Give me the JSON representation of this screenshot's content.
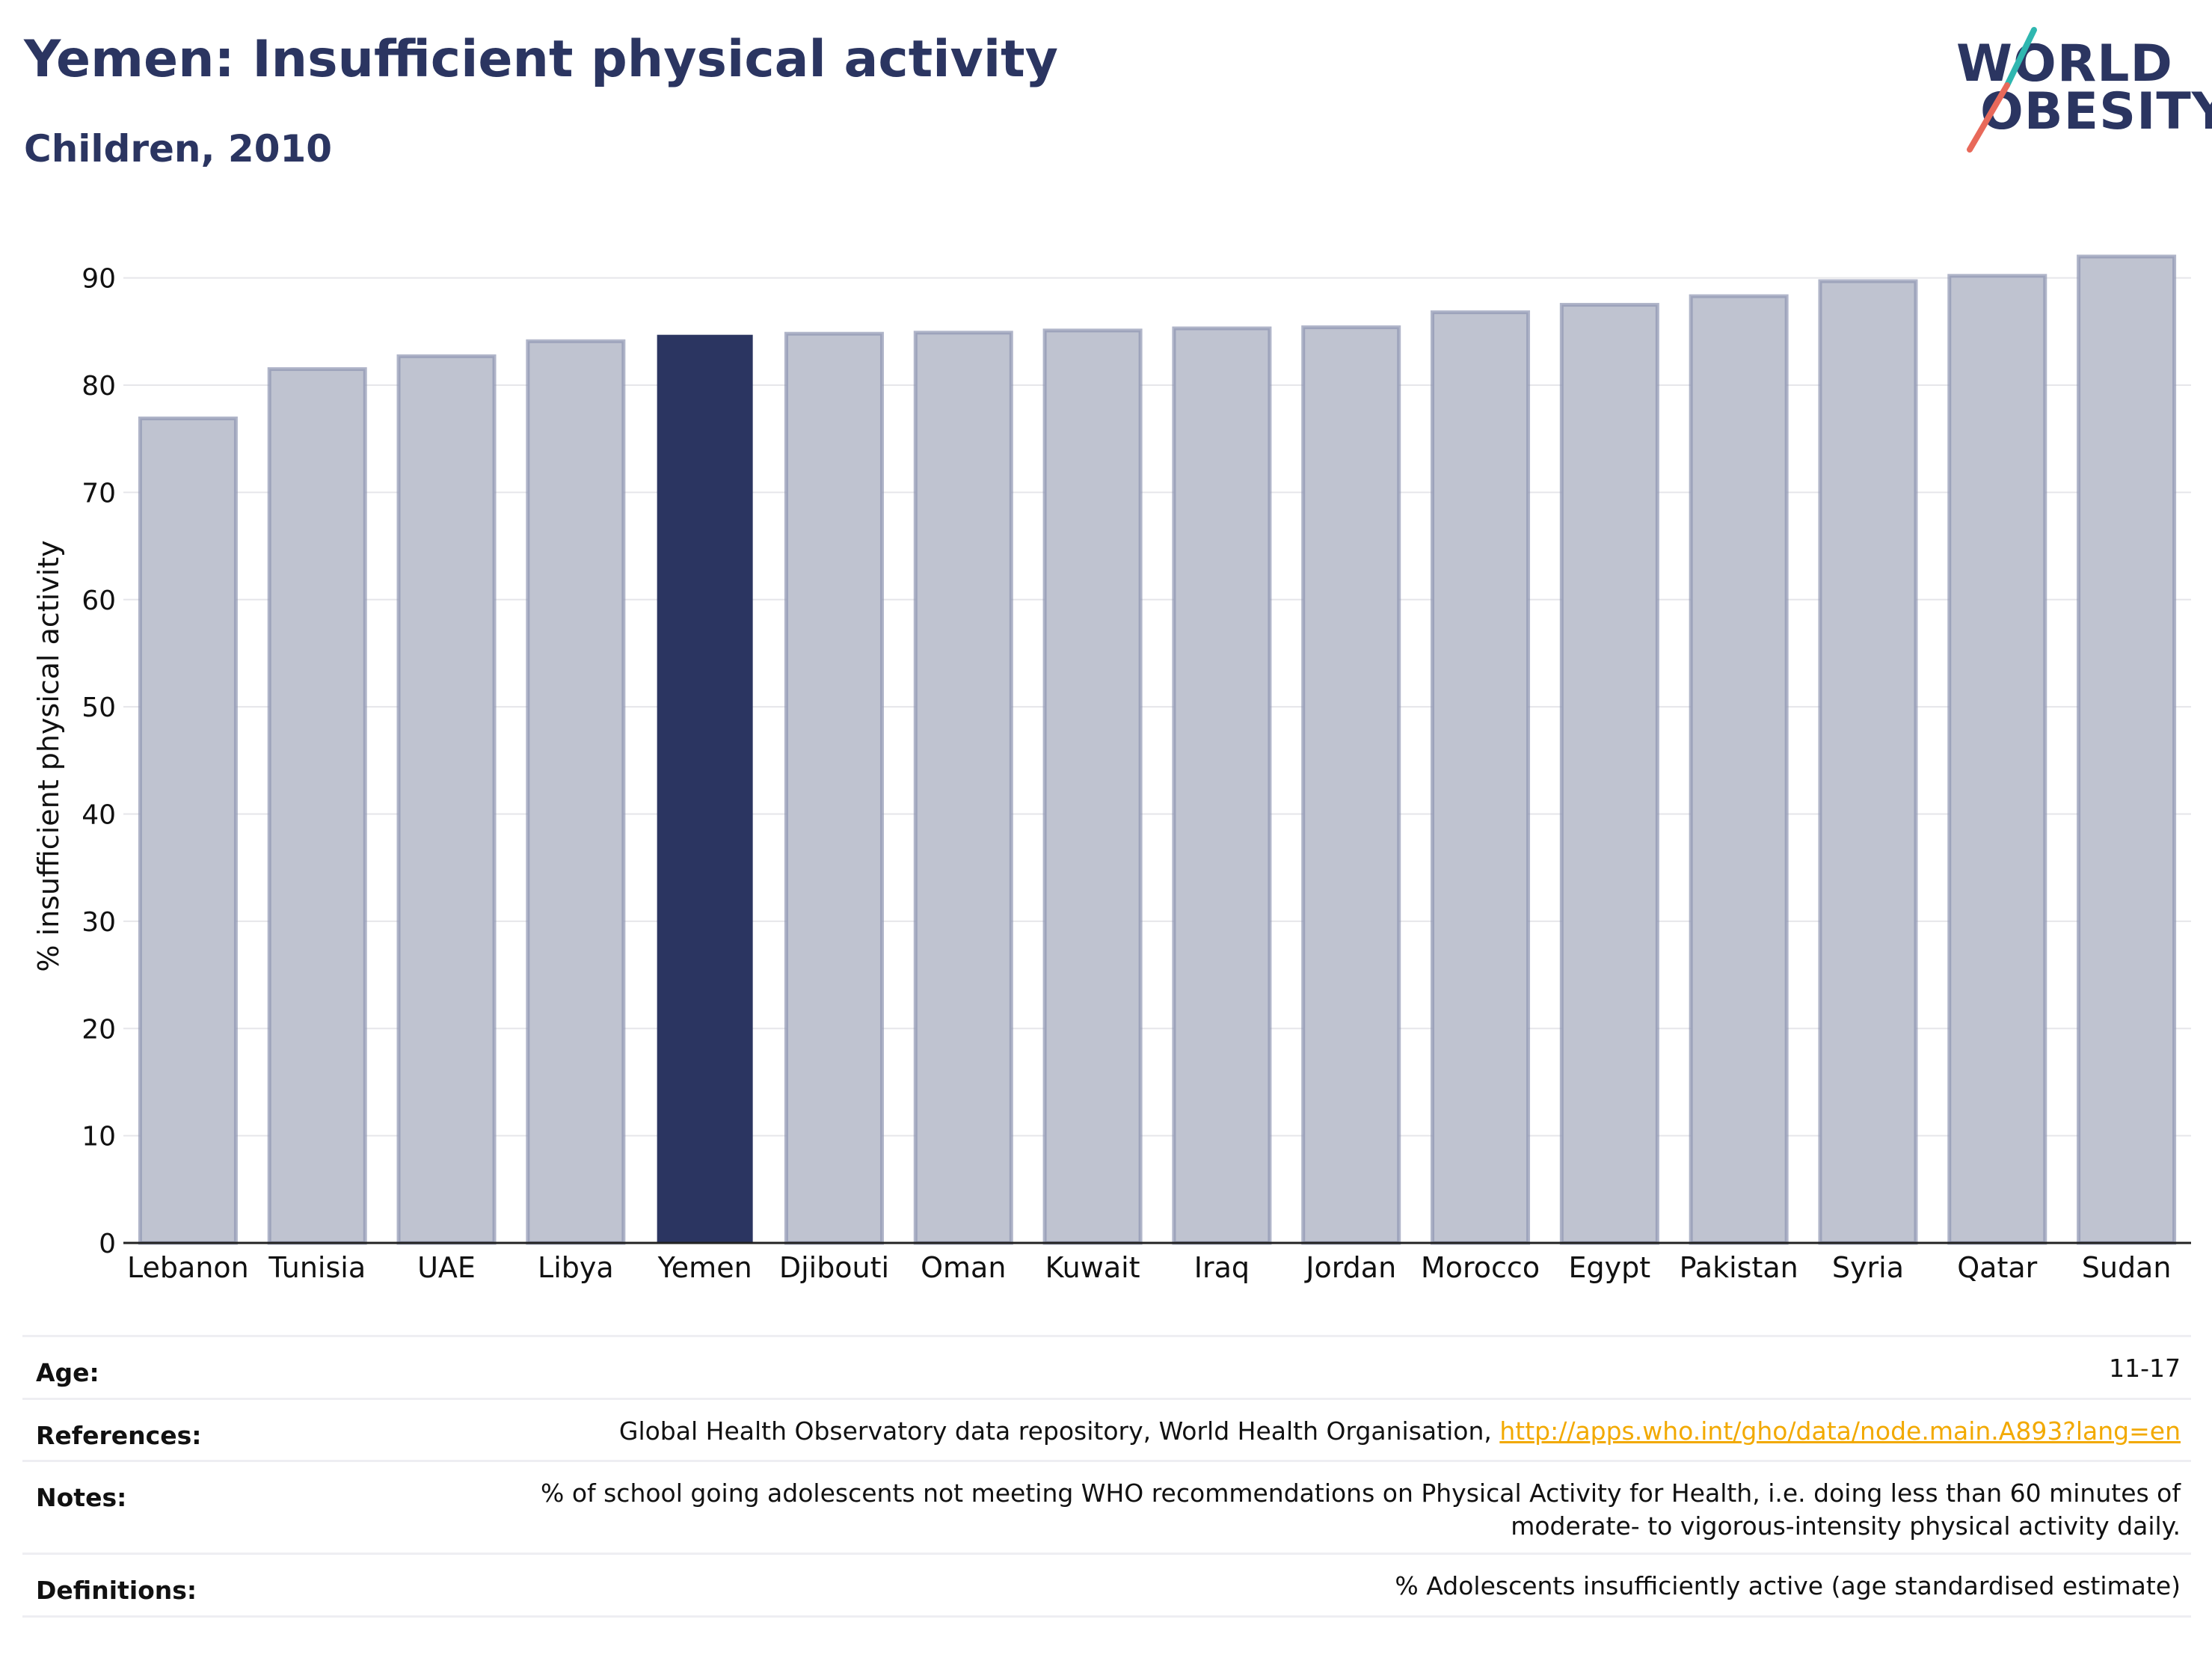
{
  "header": {
    "title": "Yemen: Insufficient physical activity",
    "subtitle": "Children, 2010"
  },
  "logo": {
    "line1": "WORLD",
    "line2": "OBESITY",
    "colors": {
      "text": "#2b3561",
      "slash_top": "#2fb7b0",
      "slash_bottom": "#e8695a"
    }
  },
  "colors": {
    "highlight_bar": "#2b3561",
    "other_bar_fill": "#bfc3d0",
    "other_bar_stroke": "#8f96b2",
    "grid": "#e6e6ea",
    "link": "#f2a900"
  },
  "chart_data": {
    "type": "bar",
    "categories": [
      "Lebanon",
      "Tunisia",
      "UAE",
      "Libya",
      "Yemen",
      "Djibouti",
      "Oman",
      "Kuwait",
      "Iraq",
      "Jordan",
      "Morocco",
      "Egypt",
      "Pakistan",
      "Syria",
      "Qatar",
      "Sudan"
    ],
    "values": [
      76.9,
      81.5,
      82.7,
      84.1,
      84.7,
      84.8,
      84.9,
      85.1,
      85.3,
      85.4,
      86.8,
      87.5,
      88.3,
      89.7,
      90.2,
      92.0
    ],
    "highlight": "Yemen",
    "ylabel": "% insufficient physical activity",
    "xlabel": "",
    "ylim": [
      0,
      95
    ],
    "yticks": [
      0,
      10,
      20,
      30,
      40,
      50,
      60,
      70,
      80,
      90
    ],
    "grid": true
  },
  "info": {
    "age_label": "Age:",
    "age_value": "11-17",
    "references_label": "References:",
    "references_text": "Global Health Observatory data repository, World Health Organisation, ",
    "references_link": "http://apps.who.int/gho/data/node.main.A893?lang=en",
    "notes_label": "Notes:",
    "notes_line1": "% of school going adolescents not meeting WHO recommendations on Physical Activity for Health, i.e. doing less than 60 minutes of",
    "notes_line2": "moderate- to vigorous-intensity physical activity daily.",
    "definitions_label": "Definitions:",
    "definitions_value": "% Adolescents insufficiently active (age standardised estimate)"
  }
}
